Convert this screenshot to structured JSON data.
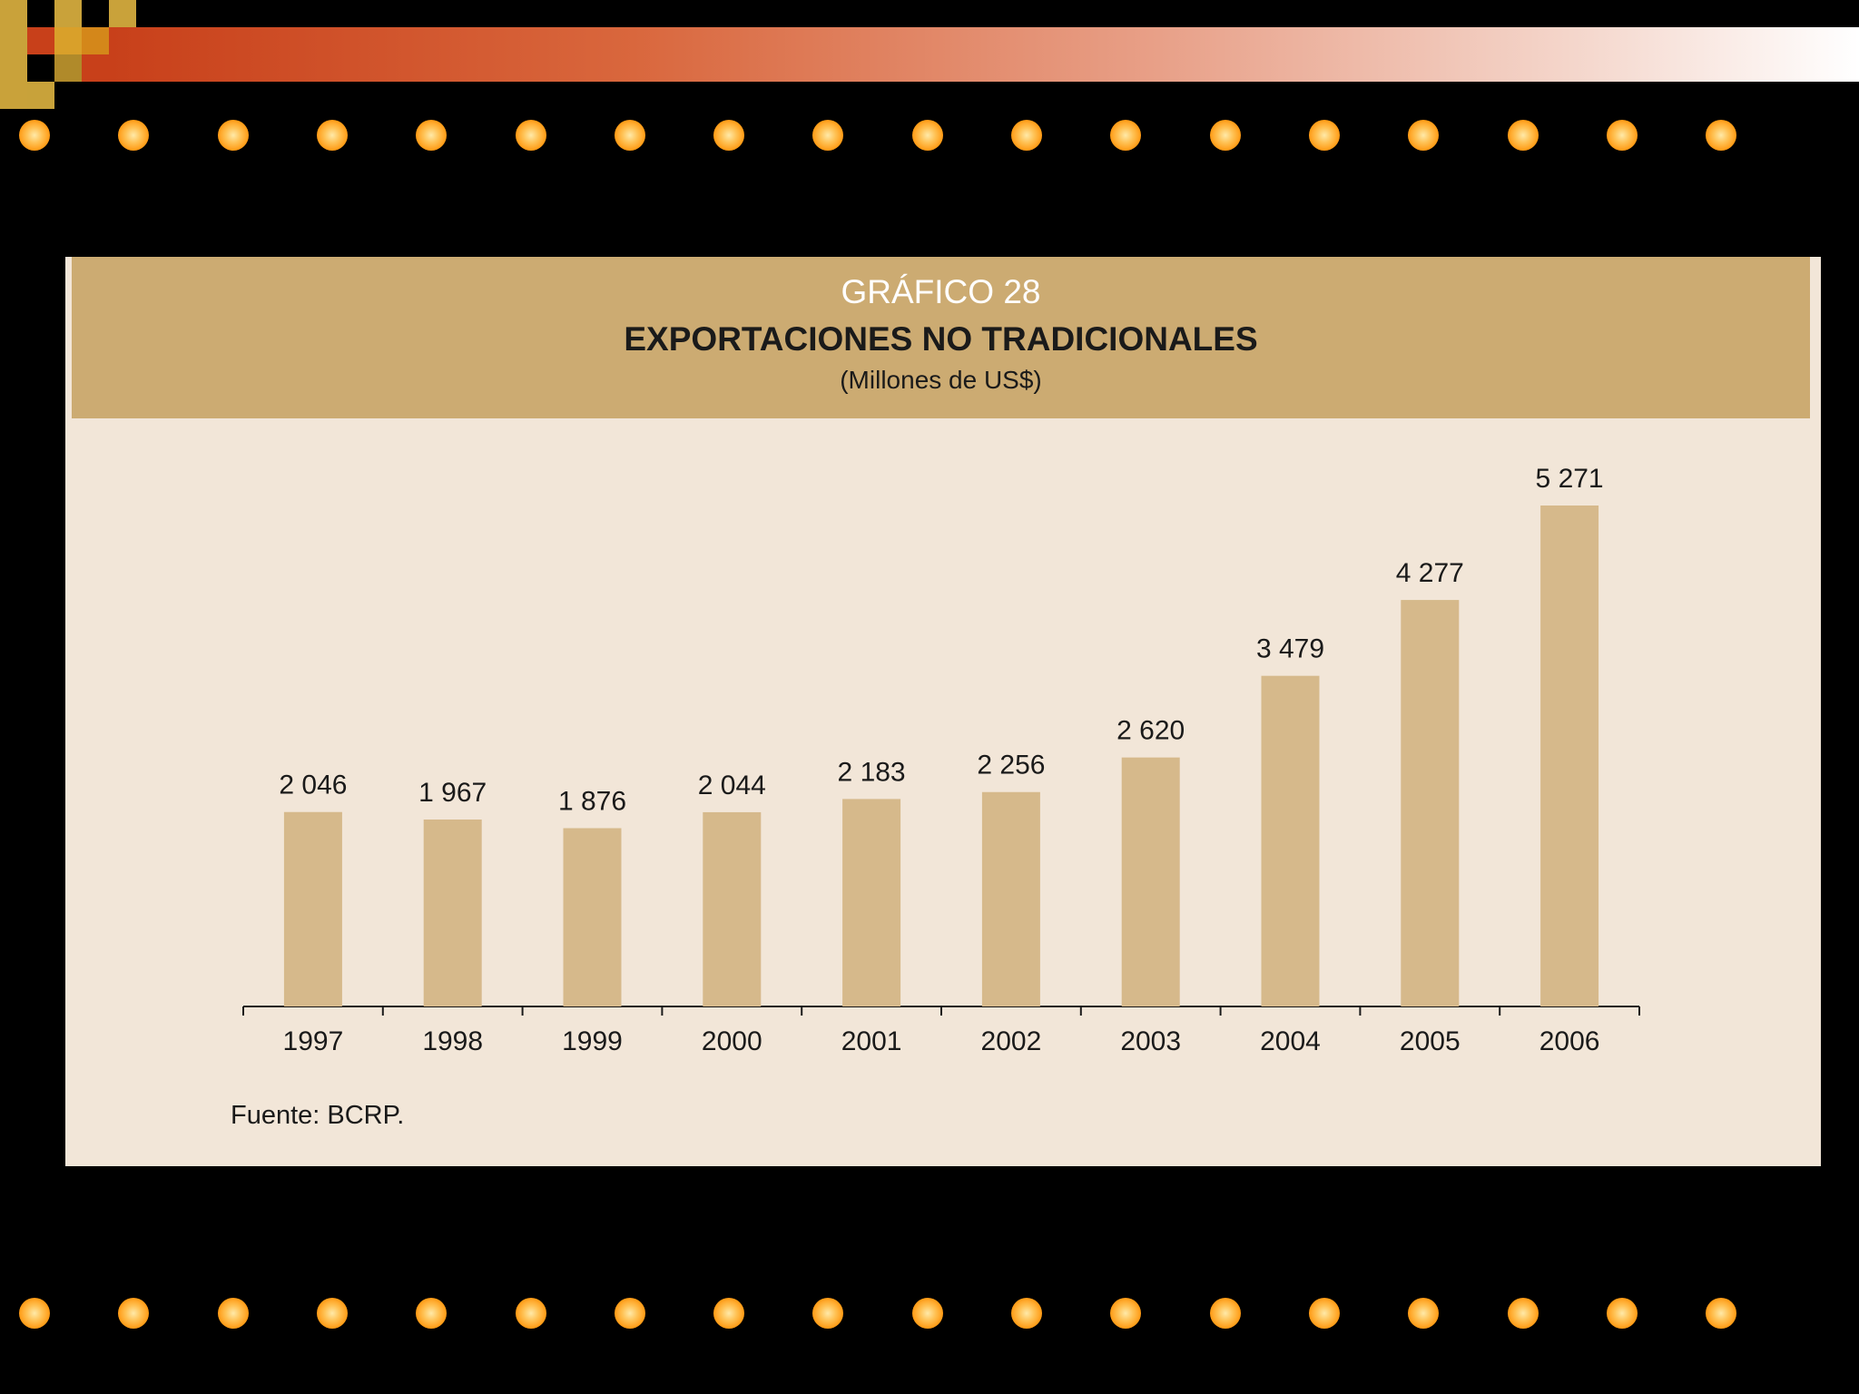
{
  "chart_data": {
    "type": "bar",
    "title_line1": "GRÁFICO 28",
    "title": "EXPORTACIONES NO TRADICIONALES",
    "subtitle": "(Millones de US$)",
    "categories": [
      "1997",
      "1998",
      "1999",
      "2000",
      "2001",
      "2002",
      "2003",
      "2004",
      "2005",
      "2006"
    ],
    "values": [
      2046,
      1967,
      1876,
      2044,
      2183,
      2256,
      2620,
      3479,
      4277,
      5271
    ],
    "value_labels": [
      "2 046",
      "1 967",
      "1 876",
      "2 044",
      "2 183",
      "2 256",
      "2 620",
      "3 479",
      "4 277",
      "5 271"
    ],
    "xlabel": "",
    "ylabel": "",
    "ylim": [
      0,
      5271
    ],
    "grid": false,
    "legend": "none",
    "bar_color": "#d6b98b",
    "source": "Fuente: BCRP."
  },
  "theme": {
    "background": "#000000",
    "panel_color": "#f2e6d8",
    "header_color": "#ccab72",
    "accent": "#c8401a",
    "dot_color": "#ff9a14"
  }
}
